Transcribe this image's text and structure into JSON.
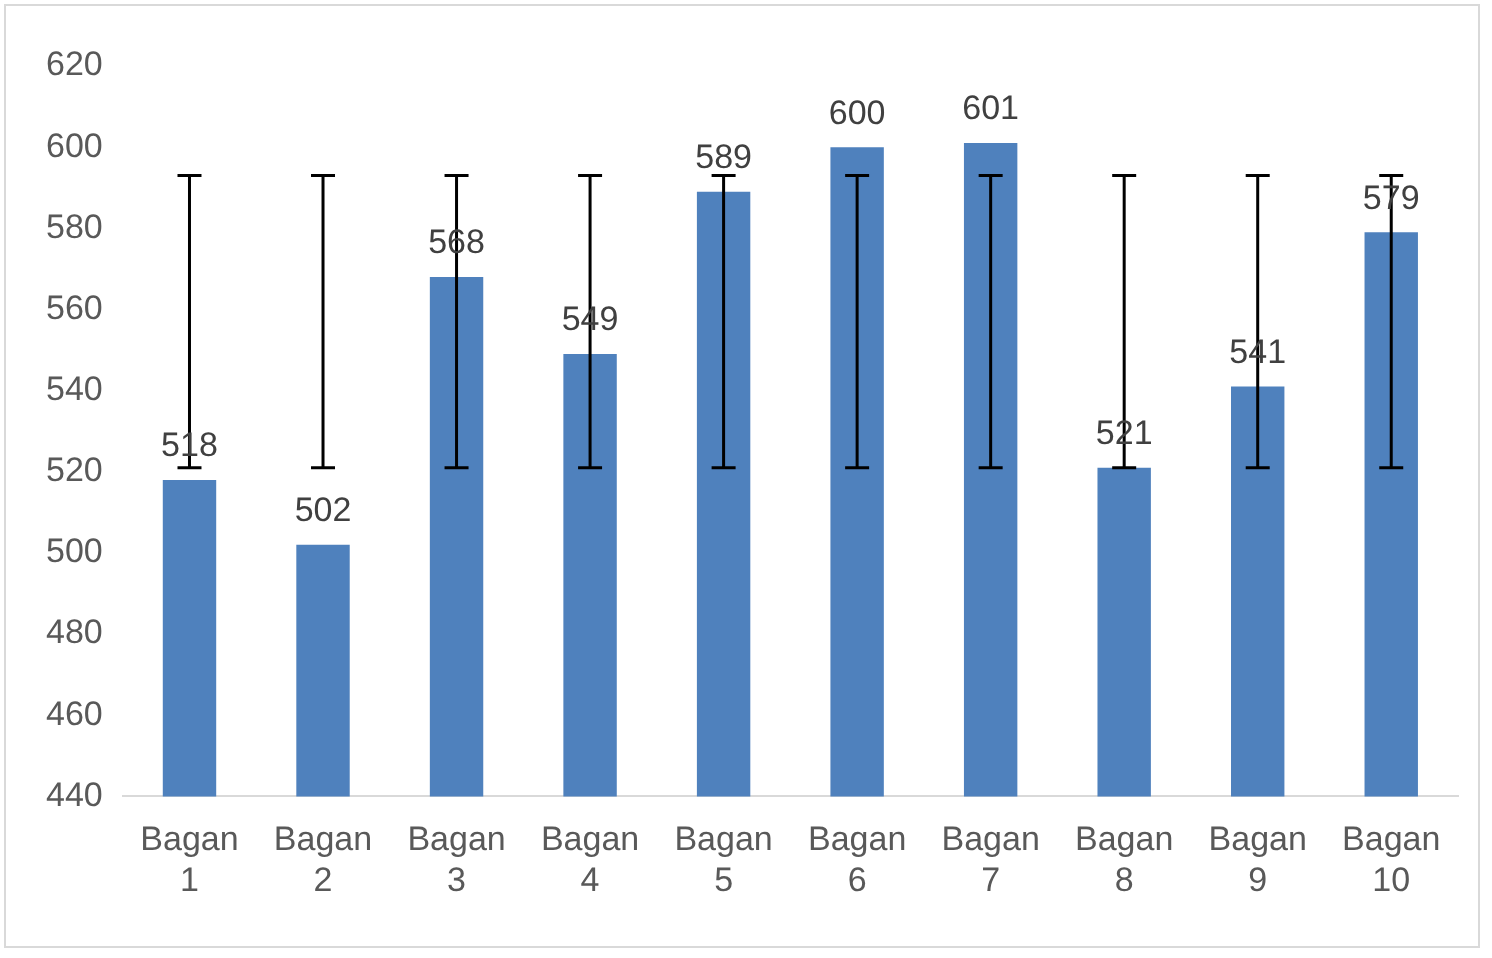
{
  "chart_data": {
    "type": "bar",
    "categories": [
      "Bagan 1",
      "Bagan 2",
      "Bagan 3",
      "Bagan 4",
      "Bagan 5",
      "Bagan 6",
      "Bagan 7",
      "Bagan 8",
      "Bagan 9",
      "Bagan 10"
    ],
    "values": [
      518,
      502,
      568,
      549,
      589,
      600,
      601,
      521,
      541,
      579
    ],
    "color": "#4f81bd",
    "errors": [
      [
        521,
        593
      ],
      [
        521,
        593
      ],
      [
        521,
        593
      ],
      [
        521,
        593
      ],
      [
        521,
        593
      ],
      [
        521,
        593
      ],
      [
        521,
        593
      ],
      [
        521,
        593
      ],
      [
        521,
        593
      ],
      [
        521,
        593
      ]
    ],
    "ylim": [
      440,
      620
    ],
    "yticks": [
      440,
      460,
      480,
      500,
      520,
      540,
      560,
      580,
      600,
      620
    ],
    "grid": false,
    "legend": false,
    "data_labels": true
  }
}
